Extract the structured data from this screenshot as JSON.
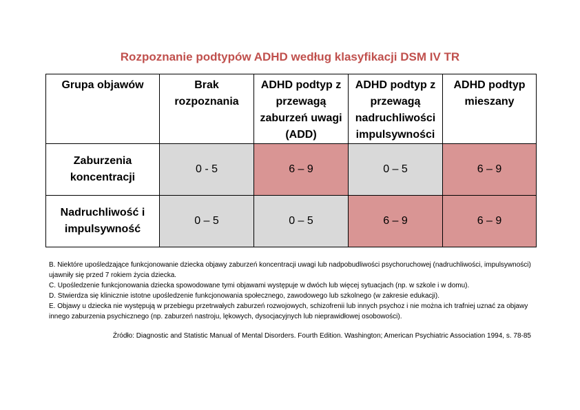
{
  "title": "Rozpoznanie podtypów ADHD według klasyfikacji DSM IV TR",
  "table": {
    "headers": [
      "Grupa objawów",
      "Brak rozpoznania",
      "ADHD podtyp z przewagą zaburzeń uwagi (ADD)",
      "ADHD podtyp z przewagą nadruchliwości impulsywności",
      "ADHD podtyp mieszany"
    ],
    "rows": [
      {
        "label": "Zaburzenia koncentracji",
        "cells": [
          "0 - 5",
          "6 – 9",
          "0 – 5",
          "6 – 9"
        ]
      },
      {
        "label": "Nadruchliwość i impulsywność",
        "cells": [
          "0 – 5",
          "0 – 5",
          "6 – 9",
          "6 – 9"
        ]
      }
    ],
    "colors": {
      "gray": "#d9d9d9",
      "pink": "#d99594"
    }
  },
  "notes": [
    "B. Niektóre upośledzające funkcjonowanie dziecka objawy zaburzeń koncentracji uwagi lub nadpobudliwości psychoruchowej (nadruchliwości, impulsywności) ujawniły się przed 7 rokiem życia dziecka.",
    "C. Upośledzenie funkcjonowania dziecka spowodowane tymi objawami występuje w dwóch lub więcej sytuacjach (np. w szkole i w domu).",
    "D. Stwierdza się klinicznie istotne upośledzenie funkcjonowania społecznego, zawodowego lub szkolnego (w zakresie edukacji).",
    "E. Objawy u dziecka nie występują w przebiegu przetrwałych zaburzeń rozwojowych, schizofrenii lub innych psychoz i nie można ich trafniej uznać za objawy innego zaburzenia psychicznego (np. zaburzeń nastroju, lękowych, dysocjacyjnych lub nieprawidłowej osobowości)."
  ],
  "source": "Źródło: Diagnostic and Statistic Manual of  Mental Disorders. Fourth Edition. Washington; American Psychiatric Association 1994, s. 78-85",
  "title_color": "#c0504d"
}
